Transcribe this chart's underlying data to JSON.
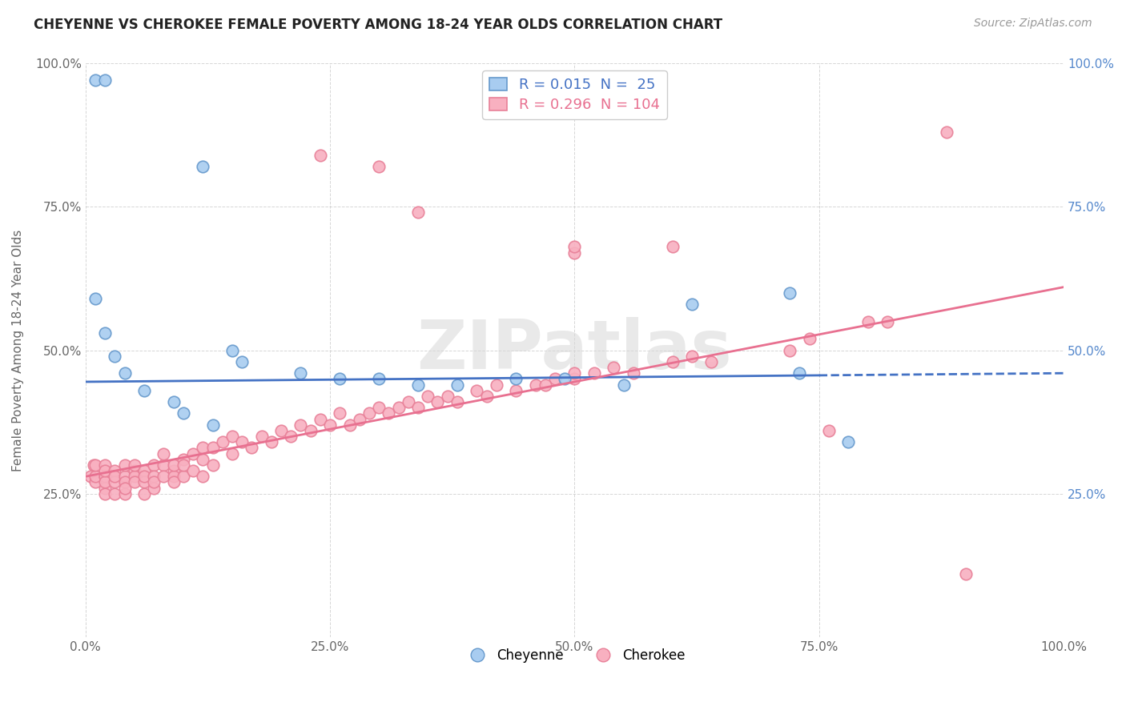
{
  "title": "CHEYENNE VS CHEROKEE FEMALE POVERTY AMONG 18-24 YEAR OLDS CORRELATION CHART",
  "source": "Source: ZipAtlas.com",
  "ylabel": "Female Poverty Among 18-24 Year Olds",
  "xlim": [
    0,
    1
  ],
  "ylim": [
    0,
    1
  ],
  "xticks": [
    0.0,
    0.25,
    0.5,
    0.75,
    1.0
  ],
  "yticks": [
    0.0,
    0.25,
    0.5,
    0.75,
    1.0
  ],
  "xticklabels": [
    "0.0%",
    "25.0%",
    "50.0%",
    "75.0%",
    "100.0%"
  ],
  "yticklabels_left": [
    "",
    "25.0%",
    "50.0%",
    "75.0%",
    "100.0%"
  ],
  "yticklabels_right": [
    "",
    "25.0%",
    "50.0%",
    "75.0%",
    "100.0%"
  ],
  "cheyenne_color": "#A8CCF0",
  "cherokee_color": "#F8B0C0",
  "cheyenne_edge": "#6699CC",
  "cherokee_edge": "#E88098",
  "trend_cheyenne_color": "#4472C4",
  "trend_cherokee_color": "#E87090",
  "cheyenne_trend_intercept": 0.445,
  "cheyenne_trend_slope": 0.015,
  "cherokee_trend_intercept": 0.28,
  "cherokee_trend_slope": 0.33,
  "cheyenne_trend_solid_end": 0.75,
  "watermark": "ZIPatlas",
  "background_color": "#FFFFFF",
  "legend_cheyenne_text": "R = 0.015  N =  25",
  "legend_cherokee_text": "R = 0.296  N = 104",
  "cheyenne_x": [
    0.01,
    0.02,
    0.01,
    0.02,
    0.03,
    0.04,
    0.06,
    0.09,
    0.1,
    0.13,
    0.15,
    0.16,
    0.22,
    0.26,
    0.3,
    0.34,
    0.38,
    0.44,
    0.49,
    0.55,
    0.62,
    0.72,
    0.73,
    0.78,
    0.12
  ],
  "cheyenne_y": [
    0.97,
    0.97,
    0.59,
    0.53,
    0.49,
    0.46,
    0.43,
    0.41,
    0.39,
    0.37,
    0.5,
    0.48,
    0.46,
    0.45,
    0.45,
    0.44,
    0.44,
    0.45,
    0.45,
    0.44,
    0.58,
    0.6,
    0.46,
    0.34,
    0.82
  ],
  "cherokee_x": [
    0.005,
    0.008,
    0.01,
    0.01,
    0.01,
    0.02,
    0.02,
    0.02,
    0.02,
    0.02,
    0.02,
    0.02,
    0.03,
    0.03,
    0.03,
    0.03,
    0.04,
    0.04,
    0.04,
    0.04,
    0.04,
    0.05,
    0.05,
    0.05,
    0.05,
    0.06,
    0.06,
    0.06,
    0.06,
    0.07,
    0.07,
    0.07,
    0.07,
    0.08,
    0.08,
    0.08,
    0.09,
    0.09,
    0.09,
    0.09,
    0.1,
    0.1,
    0.1,
    0.11,
    0.11,
    0.12,
    0.12,
    0.12,
    0.13,
    0.13,
    0.14,
    0.15,
    0.15,
    0.16,
    0.17,
    0.18,
    0.19,
    0.2,
    0.21,
    0.22,
    0.23,
    0.24,
    0.25,
    0.26,
    0.27,
    0.28,
    0.29,
    0.3,
    0.31,
    0.32,
    0.33,
    0.34,
    0.35,
    0.36,
    0.37,
    0.38,
    0.4,
    0.41,
    0.42,
    0.44,
    0.46,
    0.48,
    0.5,
    0.5,
    0.52,
    0.54,
    0.56,
    0.6,
    0.62,
    0.64,
    0.72,
    0.74,
    0.8,
    0.82,
    0.88,
    0.9,
    0.5,
    0.47,
    0.24,
    0.3,
    0.34,
    0.5,
    0.6,
    0.76
  ],
  "cherokee_y": [
    0.28,
    0.3,
    0.27,
    0.28,
    0.3,
    0.28,
    0.26,
    0.3,
    0.28,
    0.27,
    0.25,
    0.29,
    0.29,
    0.27,
    0.25,
    0.28,
    0.28,
    0.3,
    0.27,
    0.25,
    0.26,
    0.29,
    0.28,
    0.27,
    0.3,
    0.29,
    0.27,
    0.25,
    0.28,
    0.3,
    0.28,
    0.26,
    0.27,
    0.3,
    0.28,
    0.32,
    0.29,
    0.28,
    0.3,
    0.27,
    0.31,
    0.28,
    0.3,
    0.32,
    0.29,
    0.33,
    0.31,
    0.28,
    0.33,
    0.3,
    0.34,
    0.35,
    0.32,
    0.34,
    0.33,
    0.35,
    0.34,
    0.36,
    0.35,
    0.37,
    0.36,
    0.38,
    0.37,
    0.39,
    0.37,
    0.38,
    0.39,
    0.4,
    0.39,
    0.4,
    0.41,
    0.4,
    0.42,
    0.41,
    0.42,
    0.41,
    0.43,
    0.42,
    0.44,
    0.43,
    0.44,
    0.45,
    0.45,
    0.67,
    0.46,
    0.47,
    0.46,
    0.48,
    0.49,
    0.48,
    0.5,
    0.52,
    0.55,
    0.55,
    0.88,
    0.11,
    0.46,
    0.44,
    0.84,
    0.82,
    0.74,
    0.68,
    0.68,
    0.36
  ]
}
